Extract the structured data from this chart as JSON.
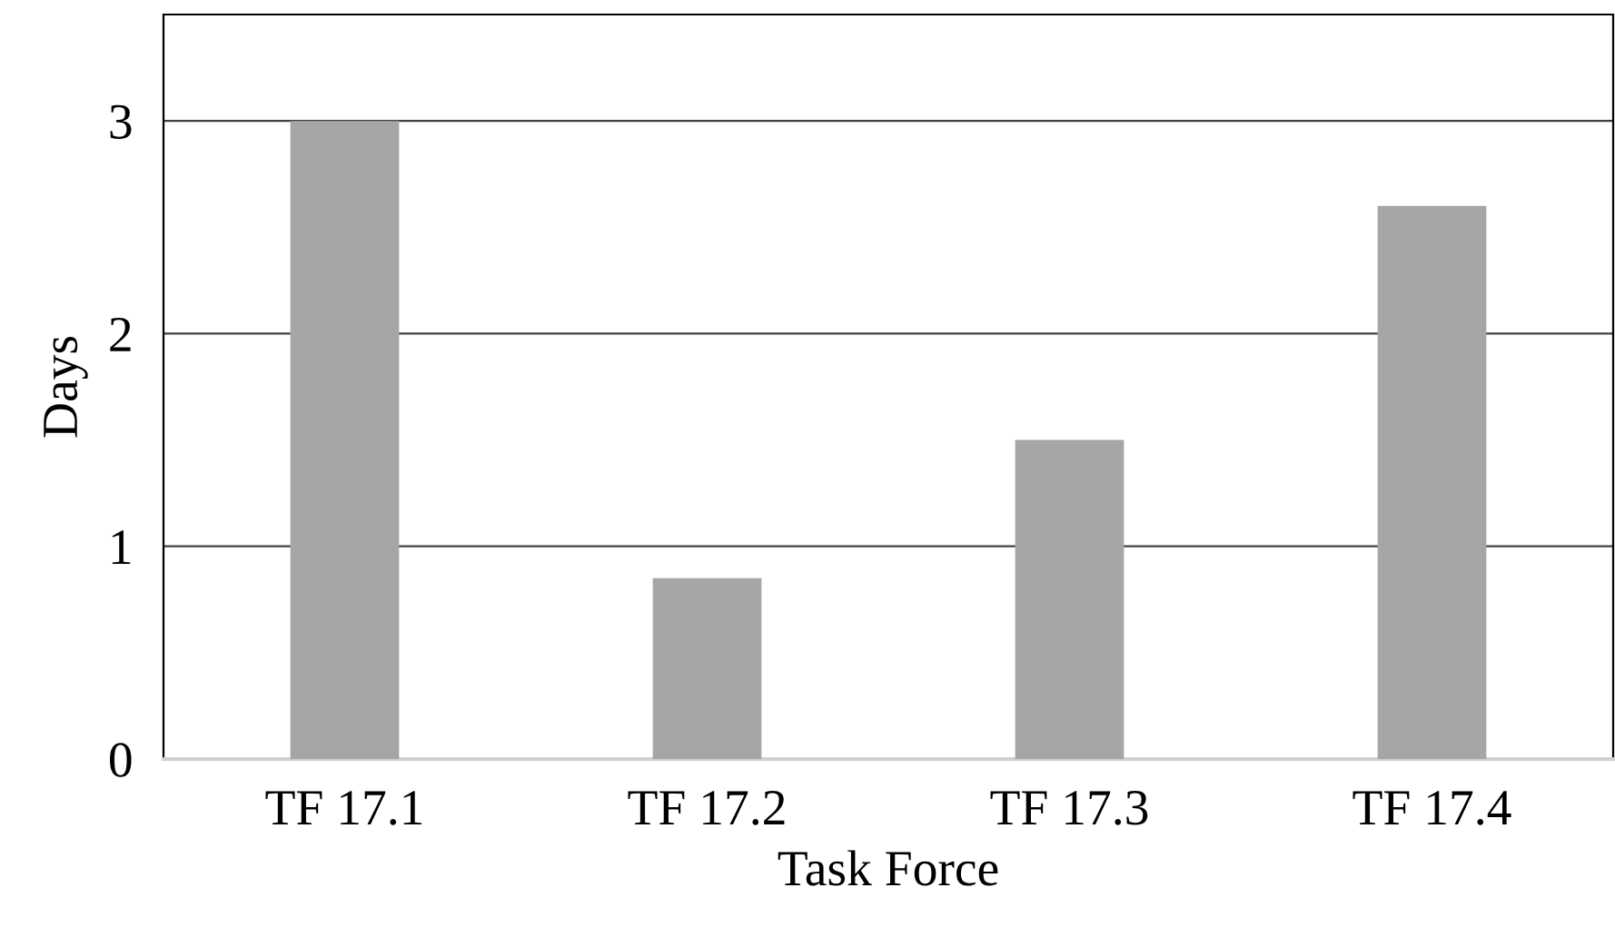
{
  "chart_data": {
    "type": "bar",
    "xlabel": "Task Force",
    "ylabel": "Days",
    "categories": [
      "TF 17.1",
      "TF 17.2",
      "TF 17.3",
      "TF 17.4"
    ],
    "values": [
      3.0,
      0.85,
      1.5,
      2.6
    ],
    "color": "#a6a6a6",
    "ylim": [
      0,
      3.5
    ],
    "yticks": [
      0,
      1,
      2,
      3
    ],
    "grid": "y",
    "legend": false
  }
}
